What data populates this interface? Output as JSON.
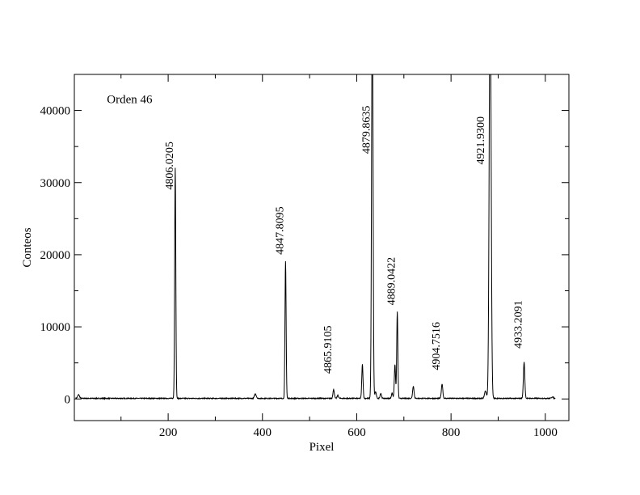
{
  "chart_data": {
    "type": "line",
    "title": "",
    "annotation": "Orden 46",
    "xlabel": "Pixel",
    "ylabel": "Conteos",
    "xlim": [
      1,
      1050
    ],
    "ylim": [
      -3000,
      45000
    ],
    "x_ticks": [
      200,
      400,
      600,
      800,
      1000
    ],
    "y_ticks": [
      0,
      10000,
      20000,
      30000,
      40000
    ],
    "x_tick_labels": [
      "200",
      "400",
      "600",
      "800",
      "1000"
    ],
    "y_tick_labels": [
      "0",
      "10000",
      "20000",
      "30000",
      "40000"
    ],
    "grid": false,
    "legend": "none",
    "baseline": 80,
    "peaks": [
      {
        "x": 10,
        "height": 500,
        "width": 2
      },
      {
        "x": 215,
        "height": 32000,
        "width": 1.2
      },
      {
        "x": 385,
        "height": 600,
        "width": 2
      },
      {
        "x": 449,
        "height": 19000,
        "width": 1.2
      },
      {
        "x": 551,
        "height": 1200,
        "width": 1.5
      },
      {
        "x": 560,
        "height": 400,
        "width": 1.5
      },
      {
        "x": 612,
        "height": 4700,
        "width": 1.3
      },
      {
        "x": 633,
        "height": 60000,
        "width": 1.5
      },
      {
        "x": 640,
        "height": 900,
        "width": 1.5
      },
      {
        "x": 651,
        "height": 700,
        "width": 1.5
      },
      {
        "x": 675,
        "height": 700,
        "width": 1.5
      },
      {
        "x": 681,
        "height": 4700,
        "width": 1.3
      },
      {
        "x": 686,
        "height": 12000,
        "width": 1.2
      },
      {
        "x": 720,
        "height": 1700,
        "width": 1.5
      },
      {
        "x": 781,
        "height": 2000,
        "width": 1.5
      },
      {
        "x": 873,
        "height": 1000,
        "width": 2
      },
      {
        "x": 883,
        "height": 60000,
        "width": 2
      },
      {
        "x": 955,
        "height": 5000,
        "width": 1.5
      },
      {
        "x": 1015,
        "height": 200,
        "width": 2
      }
    ],
    "line_labels": [
      {
        "text": "4806.0205",
        "x": 215,
        "y": 29000
      },
      {
        "text": "4847.8095",
        "x": 449,
        "y": 20000
      },
      {
        "text": "4865.9105",
        "x": 551,
        "y": 3500
      },
      {
        "text": "4879.8635",
        "x": 633,
        "y": 34000
      },
      {
        "text": "4889.0422",
        "x": 686,
        "y": 13000
      },
      {
        "text": "4904.7516",
        "x": 781,
        "y": 4000
      },
      {
        "text": "4921.9300",
        "x": 875,
        "y": 32500
      },
      {
        "text": "4933.2091",
        "x": 955,
        "y": 7000
      }
    ]
  }
}
